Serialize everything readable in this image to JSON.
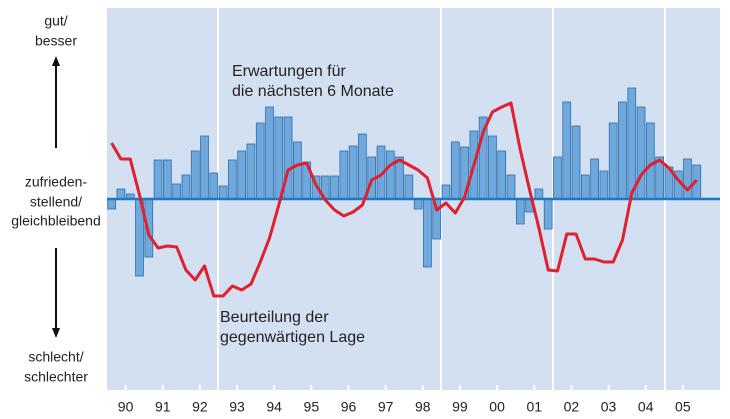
{
  "chart_data": {
    "type": "bar-line",
    "y_labels": [
      [
        "gut/",
        "besser"
      ],
      [
        "zufrieden-",
        "stellend/",
        "gleichbleibend"
      ],
      [
        "schlecht/",
        "schlechter"
      ]
    ],
    "xlim": [
      1990,
      2006.5
    ],
    "ylim": [
      -19.1,
      19.1
    ],
    "xticks": [
      {
        "value": 1990.5,
        "label": "90"
      },
      {
        "value": 1991.5,
        "label": "91"
      },
      {
        "value": 1992.5,
        "label": "92"
      },
      {
        "value": 1993.5,
        "label": "93"
      },
      {
        "value": 1994.5,
        "label": "94"
      },
      {
        "value": 1995.5,
        "label": "95"
      },
      {
        "value": 1996.5,
        "label": "96"
      },
      {
        "value": 1997.5,
        "label": "97"
      },
      {
        "value": 1998.5,
        "label": "98"
      },
      {
        "value": 1999.5,
        "label": "99"
      },
      {
        "value": 2000.5,
        "label": "00"
      },
      {
        "value": 2001.5,
        "label": "01"
      },
      {
        "value": 2002.5,
        "label": "02"
      },
      {
        "value": 2003.5,
        "label": "03"
      },
      {
        "value": 2004.5,
        "label": "04"
      },
      {
        "value": 2005.5,
        "label": "05"
      }
    ],
    "x": [
      1990.125,
      1990.375,
      1990.625,
      1990.875,
      1991.125,
      1991.375,
      1991.625,
      1991.875,
      1992.125,
      1992.375,
      1992.625,
      1992.875,
      1993.125,
      1993.375,
      1993.625,
      1993.875,
      1994.125,
      1994.375,
      1994.625,
      1994.875,
      1995.125,
      1995.375,
      1995.625,
      1995.875,
      1996.125,
      1996.375,
      1996.625,
      1996.875,
      1997.125,
      1997.375,
      1997.625,
      1997.875,
      1998.125,
      1998.375,
      1998.625,
      1998.875,
      1999.125,
      1999.375,
      1999.625,
      1999.875,
      2000.125,
      2000.375,
      2000.625,
      2000.875,
      2001.125,
      2001.375,
      2001.625,
      2001.875,
      2002.125,
      2002.375,
      2002.625,
      2002.875,
      2003.125,
      2003.375,
      2003.625,
      2003.875,
      2004.125,
      2004.375,
      2004.625,
      2004.875,
      2005.125,
      2005.375,
      2005.625,
      2005.875
    ],
    "series": [
      {
        "name": [
          "Erwartungen für",
          "die nächsten 6 Monate"
        ],
        "kind": "bar",
        "color": "#6ea8dc",
        "label_color": "#1f7fc4",
        "values": [
          -1,
          1,
          0.5,
          -7.7,
          -5.8,
          3.9,
          3.9,
          1.5,
          2.4,
          4.8,
          6.3,
          2.6,
          1.3,
          3.9,
          4.8,
          5.5,
          7.6,
          9.2,
          8.2,
          8.2,
          5.7,
          3.7,
          2.3,
          2.3,
          2.3,
          4.8,
          5.3,
          6.5,
          4.2,
          5.3,
          4.8,
          4.2,
          2.4,
          -1,
          -6.8,
          -4,
          1.4,
          5.7,
          5.2,
          6.8,
          8.2,
          6.3,
          4.8,
          2.4,
          -2.5,
          -1.3,
          1,
          -3,
          4.2,
          9.7,
          7.3,
          2.4,
          4,
          2.8,
          7.6,
          9.7,
          11.1,
          9.2,
          7.6,
          4.2,
          3.2,
          2.8,
          4,
          3.4
        ]
      },
      {
        "name": [
          "Beurteilung der",
          "gegenwärtigen Lage"
        ],
        "kind": "line",
        "color": "#e0202e",
        "label_color": "#d0202c",
        "values": [
          5.6,
          4,
          4,
          0.4,
          -3.6,
          -4.9,
          -4.7,
          -4.8,
          -7.1,
          -8.1,
          -6.7,
          -9.7,
          -9.7,
          -8.7,
          -9.1,
          -8.5,
          -6.3,
          -3.9,
          -0.6,
          2.9,
          3.4,
          3.6,
          1.4,
          -0.1,
          -1.1,
          -1.7,
          -1.3,
          -0.6,
          1.9,
          2.4,
          3.4,
          3.9,
          3.4,
          2.9,
          2.1,
          -1.1,
          -0.4,
          -1.4,
          0.2,
          3.4,
          6.7,
          8.7,
          9.2,
          9.6,
          4.9,
          0.9,
          -2.9,
          -7.1,
          -7.2,
          -3.5,
          -3.5,
          -6,
          -6,
          -6.3,
          -6.3,
          -4.1,
          0.6,
          2.4,
          3.4,
          3.9,
          3.1,
          1.9,
          0.9,
          1.9
        ]
      }
    ]
  }
}
